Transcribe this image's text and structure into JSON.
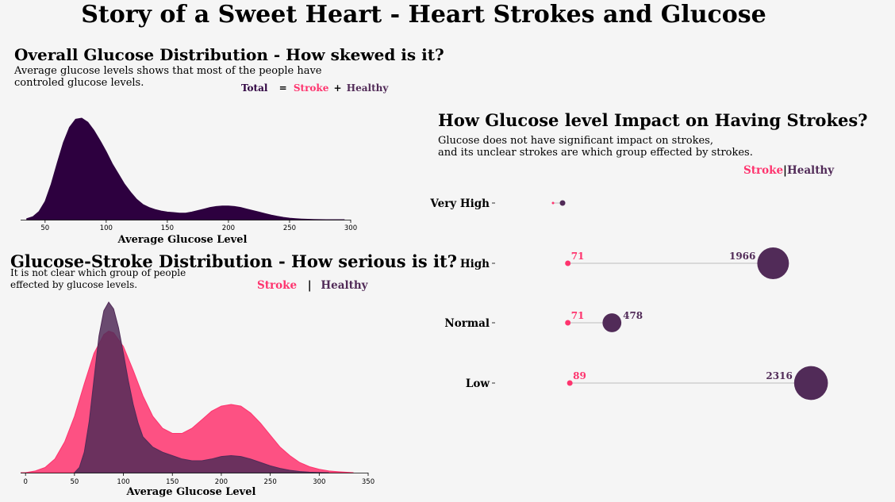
{
  "title": "Story of a Sweet Heart - Heart Strokes and Glucose",
  "colors": {
    "background": "#f5f5f5",
    "total": "#2d003f",
    "stroke": "#fe346e",
    "healthy": "#512b58",
    "connector": "#d9d9d9"
  },
  "panels": {
    "overall": {
      "title": "Overall Glucose Distribution - How skewed is it?",
      "subtitle": "Average glucose levels shows that most of the people have\ncontroled glucose levels.",
      "legend": {
        "total": "Total",
        "eq": "=",
        "stroke": "Stroke",
        "plus": "+",
        "healthy": "Healthy"
      }
    },
    "split": {
      "title": "Glucose-Stroke Distribution - How serious is it?",
      "subtitle": "It is not clear which group of people\neffected by glucose levels.",
      "legend": {
        "stroke": "Stroke",
        "sep": "|",
        "healthy": "Healthy"
      }
    },
    "impact": {
      "title": "How Glucose level Impact on Having Strokes?",
      "subtitle": "Glucose does not have significant impact on strokes,\n and its unclear strokes are which group effected by strokes.",
      "legend": {
        "stroke": "Stroke",
        "sep": "|",
        "healthy": "Healthy"
      }
    }
  },
  "chart_data": [
    {
      "type": "area",
      "title": "Overall Glucose Distribution - How skewed is it?",
      "xlabel": "Average Glucose Level",
      "ylabel": "",
      "xlim": [
        30,
        300
      ],
      "xticks": [
        50,
        100,
        150,
        200,
        250,
        300
      ],
      "grid": false,
      "series": [
        {
          "name": "Total",
          "color": "#2d003f",
          "x": [
            35,
            40,
            45,
            50,
            55,
            60,
            65,
            70,
            75,
            80,
            85,
            90,
            95,
            100,
            105,
            110,
            115,
            120,
            125,
            130,
            135,
            140,
            145,
            150,
            155,
            160,
            165,
            170,
            175,
            180,
            185,
            190,
            195,
            200,
            205,
            210,
            215,
            220,
            225,
            230,
            235,
            240,
            245,
            250,
            255,
            260,
            265,
            270,
            275,
            280,
            285,
            290,
            295
          ],
          "y": [
            0.01,
            0.03,
            0.08,
            0.18,
            0.35,
            0.56,
            0.76,
            0.91,
            0.99,
            1.0,
            0.96,
            0.88,
            0.78,
            0.67,
            0.55,
            0.45,
            0.35,
            0.27,
            0.2,
            0.15,
            0.12,
            0.1,
            0.085,
            0.075,
            0.07,
            0.065,
            0.065,
            0.075,
            0.09,
            0.105,
            0.12,
            0.13,
            0.135,
            0.135,
            0.13,
            0.12,
            0.105,
            0.09,
            0.075,
            0.06,
            0.045,
            0.033,
            0.023,
            0.015,
            0.01,
            0.006,
            0.004,
            0.002,
            0.001,
            0.0,
            0.0,
            0.0,
            0.0
          ]
        }
      ]
    },
    {
      "type": "area",
      "title": "Glucose-Stroke Distribution - How serious is it?",
      "xlabel": "Average Glucose Level",
      "ylabel": "",
      "xlim": [
        -5,
        350
      ],
      "xticks": [
        0,
        50,
        100,
        150,
        200,
        250,
        300,
        350
      ],
      "grid": false,
      "series": [
        {
          "name": "Stroke",
          "color": "#fe346e",
          "x": [
            -5,
            0,
            10,
            20,
            30,
            40,
            50,
            60,
            70,
            80,
            85,
            90,
            100,
            110,
            120,
            130,
            140,
            150,
            160,
            170,
            180,
            190,
            200,
            210,
            220,
            230,
            240,
            250,
            260,
            270,
            280,
            290,
            300,
            310,
            320,
            335
          ],
          "y": [
            0.0,
            0.0,
            0.01,
            0.03,
            0.08,
            0.18,
            0.33,
            0.52,
            0.7,
            0.81,
            0.83,
            0.82,
            0.74,
            0.6,
            0.45,
            0.33,
            0.26,
            0.23,
            0.23,
            0.26,
            0.31,
            0.36,
            0.39,
            0.4,
            0.39,
            0.35,
            0.29,
            0.22,
            0.15,
            0.1,
            0.06,
            0.035,
            0.02,
            0.01,
            0.005,
            0.0
          ]
        },
        {
          "name": "Healthy",
          "color": "#512b58",
          "x": [
            50,
            55,
            60,
            65,
            70,
            75,
            80,
            85,
            90,
            95,
            100,
            105,
            110,
            115,
            120,
            130,
            140,
            150,
            160,
            170,
            180,
            190,
            200,
            210,
            220,
            230,
            240,
            250,
            260,
            270,
            280,
            290,
            300,
            310
          ],
          "y": [
            0.0,
            0.03,
            0.12,
            0.3,
            0.55,
            0.8,
            0.95,
            1.0,
            0.96,
            0.85,
            0.7,
            0.54,
            0.4,
            0.29,
            0.21,
            0.15,
            0.12,
            0.1,
            0.08,
            0.07,
            0.07,
            0.08,
            0.095,
            0.1,
            0.095,
            0.08,
            0.06,
            0.04,
            0.025,
            0.014,
            0.007,
            0.003,
            0.001,
            0.0
          ]
        }
      ]
    },
    {
      "type": "scatter",
      "title": "How Glucose level Impact on Having Strokes?",
      "categories": [
        "Very High",
        "High",
        "Normal",
        "Low"
      ],
      "legend": "top-right",
      "grid": false,
      "series": [
        {
          "name": "Stroke",
          "color": "#fe346e",
          "values": [
            null,
            71,
            71,
            89
          ]
        },
        {
          "name": "Healthy",
          "color": "#512b58",
          "values": [
            null,
            1966,
            478,
            2316
          ]
        }
      ]
    }
  ]
}
